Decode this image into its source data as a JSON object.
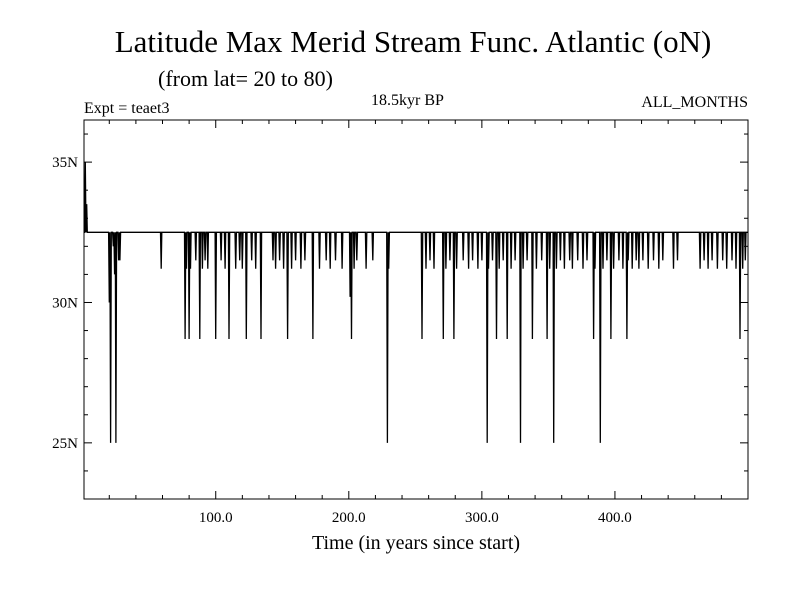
{
  "header": {
    "title": "Latitude Max Merid Stream Func. Atlantic (oN)",
    "subtitle": "(from lat= 20 to 80)",
    "expt": "Expt = teaet3",
    "period": "18.5kyr BP",
    "months": "ALL_MONTHS"
  },
  "chart_data": {
    "type": "line",
    "title": "Latitude Max Merid Stream Func. Atlantic (oN)",
    "subtitle": "(from lat= 20 to 80)",
    "xlabel": "Time (in years since start)",
    "ylabel": "",
    "xlim": [
      1,
      500
    ],
    "ylim": [
      23,
      36.5
    ],
    "xticks": [
      100,
      200,
      300,
      400
    ],
    "xtick_labels": [
      "100.0",
      "200.0",
      "300.0",
      "400.0"
    ],
    "yticks": [
      25,
      30,
      35
    ],
    "ytick_labels": [
      "25N",
      "30N",
      "35N"
    ],
    "grid": false,
    "baseline": 32.5,
    "series": [
      {
        "dips": [
          [
            2,
            35
          ],
          [
            3,
            33.5
          ],
          [
            20,
            30
          ],
          [
            21,
            25
          ],
          [
            23,
            32
          ],
          [
            24,
            31
          ],
          [
            25,
            25
          ],
          [
            27,
            31.5
          ],
          [
            28,
            31.5
          ],
          [
            59,
            31.2
          ],
          [
            77,
            28.7
          ],
          [
            78,
            31.2
          ],
          [
            80,
            28.7
          ],
          [
            81,
            31.2
          ],
          [
            85,
            31.5
          ],
          [
            88,
            28.7
          ],
          [
            90,
            31.2
          ],
          [
            92,
            31.5
          ],
          [
            94,
            31.2
          ],
          [
            100,
            28.7
          ],
          [
            104,
            31.5
          ],
          [
            107,
            31.2
          ],
          [
            110,
            28.7
          ],
          [
            115,
            31.2
          ],
          [
            118,
            31.5
          ],
          [
            120,
            31.2
          ],
          [
            123,
            28.7
          ],
          [
            127,
            31.5
          ],
          [
            130,
            31.2
          ],
          [
            134,
            28.7
          ],
          [
            143,
            31.5
          ],
          [
            145,
            31.2
          ],
          [
            148,
            31.5
          ],
          [
            151,
            31.2
          ],
          [
            154,
            28.7
          ],
          [
            157,
            31.2
          ],
          [
            160,
            31.5
          ],
          [
            164,
            31.2
          ],
          [
            167,
            31.5
          ],
          [
            173,
            28.7
          ],
          [
            178,
            31.2
          ],
          [
            183,
            31.5
          ],
          [
            186,
            31.2
          ],
          [
            190,
            31.5
          ],
          [
            195,
            31.2
          ],
          [
            201,
            30.2
          ],
          [
            202,
            28.7
          ],
          [
            204,
            31.2
          ],
          [
            206,
            31.5
          ],
          [
            213,
            31.2
          ],
          [
            218,
            31.5
          ],
          [
            229,
            25
          ],
          [
            230,
            31.2
          ],
          [
            255,
            28.7
          ],
          [
            258,
            31.2
          ],
          [
            261,
            31.5
          ],
          [
            264,
            31.2
          ],
          [
            271,
            28.7
          ],
          [
            273,
            31.2
          ],
          [
            276,
            31.5
          ],
          [
            279,
            28.7
          ],
          [
            281,
            31.2
          ],
          [
            286,
            31.5
          ],
          [
            290,
            31.2
          ],
          [
            293,
            31.5
          ],
          [
            297,
            31.2
          ],
          [
            300,
            31.5
          ],
          [
            304,
            25
          ],
          [
            305,
            31.2
          ],
          [
            308,
            31.5
          ],
          [
            311,
            28.7
          ],
          [
            313,
            31.2
          ],
          [
            316,
            31.5
          ],
          [
            319,
            28.7
          ],
          [
            322,
            31.2
          ],
          [
            325,
            31.5
          ],
          [
            329,
            25
          ],
          [
            331,
            31.2
          ],
          [
            334,
            31.5
          ],
          [
            338,
            28.7
          ],
          [
            341,
            31.2
          ],
          [
            345,
            31.5
          ],
          [
            349,
            28.7
          ],
          [
            351,
            31.2
          ],
          [
            354,
            25
          ],
          [
            356,
            31.2
          ],
          [
            359,
            31.5
          ],
          [
            362,
            31.2
          ],
          [
            366,
            31.5
          ],
          [
            368,
            31.2
          ],
          [
            372,
            31.5
          ],
          [
            376,
            31.2
          ],
          [
            379,
            31.5
          ],
          [
            384,
            28.7
          ],
          [
            385,
            31.2
          ],
          [
            389,
            25
          ],
          [
            391,
            31.2
          ],
          [
            394,
            31.5
          ],
          [
            397,
            28.7
          ],
          [
            399,
            31.2
          ],
          [
            403,
            31.5
          ],
          [
            406,
            31.2
          ],
          [
            409,
            28.7
          ],
          [
            410,
            31.5
          ],
          [
            413,
            31.2
          ],
          [
            416,
            31.5
          ],
          [
            418,
            31.2
          ],
          [
            421,
            31.5
          ],
          [
            425,
            31.2
          ],
          [
            429,
            31.5
          ],
          [
            433,
            31.2
          ],
          [
            436,
            31.5
          ],
          [
            444,
            31.2
          ],
          [
            447,
            31.5
          ],
          [
            464,
            31.2
          ],
          [
            467,
            31.5
          ],
          [
            470,
            31.2
          ],
          [
            473,
            31.5
          ],
          [
            477,
            31.2
          ],
          [
            481,
            31.5
          ],
          [
            484,
            31.2
          ],
          [
            488,
            31.5
          ],
          [
            491,
            31.2
          ],
          [
            494,
            28.7
          ],
          [
            496,
            31.2
          ],
          [
            498,
            31.5
          ]
        ]
      }
    ]
  }
}
